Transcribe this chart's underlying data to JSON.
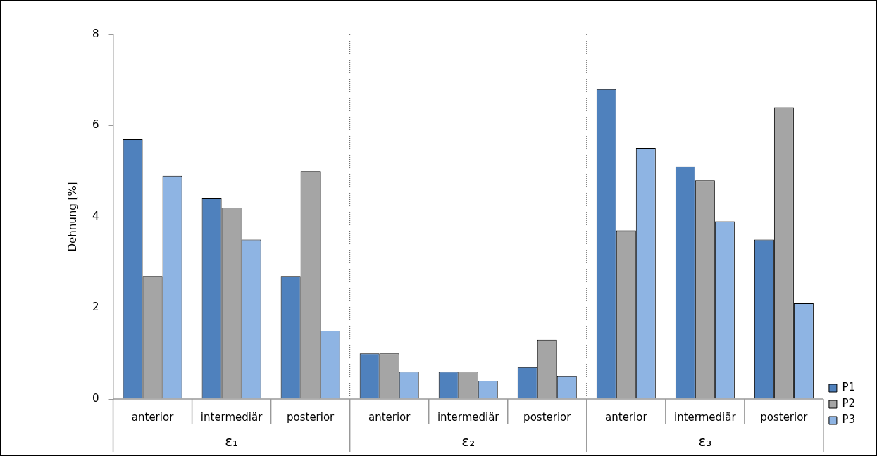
{
  "chart_data": {
    "type": "bar",
    "ylabel": "Dehnung [%]",
    "categories": [
      "anterior",
      "intermediär",
      "posterior",
      "anterior",
      "intermediär",
      "posterior",
      "anterior",
      "intermediär",
      "posterior"
    ],
    "series": [
      {
        "name": "P1",
        "color": "#4f81bd",
        "values": [
          5.7,
          4.4,
          2.7,
          1.0,
          0.6,
          0.7,
          6.8,
          5.1,
          3.5
        ]
      },
      {
        "name": "P2",
        "color": "#a5a5a5",
        "values": [
          2.7,
          4.2,
          5.0,
          1.0,
          0.6,
          1.3,
          3.7,
          4.8,
          6.4
        ]
      },
      {
        "name": "P3",
        "color": "#8eb4e3",
        "values": [
          4.9,
          3.5,
          1.5,
          0.6,
          0.4,
          0.5,
          5.5,
          3.9,
          2.1
        ]
      }
    ],
    "annotations": [
      "ε₁",
      "ε₂",
      "ε₃"
    ],
    "ylim": [
      0,
      8
    ],
    "yticks": [
      0,
      2,
      4,
      6,
      8
    ],
    "grid": false,
    "legend": "bottom right"
  }
}
